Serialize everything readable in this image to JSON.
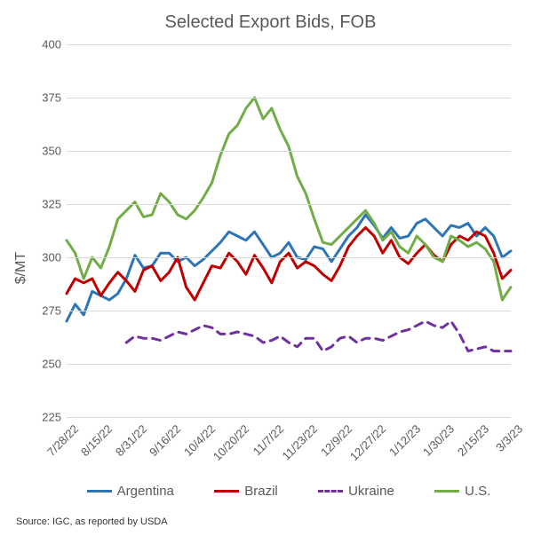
{
  "chart": {
    "type": "line",
    "title": "Selected Export Bids, FOB",
    "title_fontsize": 20,
    "title_color": "#595959",
    "ylabel": "$/MT",
    "ylabel_fontsize": 16,
    "background_color": "#ffffff",
    "grid_color": "#d9d9d9",
    "axis_line_color": "#d9d9d9",
    "tick_font_color": "#595959",
    "tick_fontsize": 13,
    "ylim": [
      225,
      400
    ],
    "yticks": [
      225,
      250,
      275,
      300,
      325,
      350,
      375,
      400
    ],
    "xcategories": [
      "7/28/22",
      "8/15/22",
      "8/31/22",
      "9/16/22",
      "10/4/22",
      "10/20/22",
      "11/7/22",
      "11/23/22",
      "12/9/22",
      "12/27/22",
      "1/12/23",
      "1/30/23",
      "2/15/23",
      "3/3/23"
    ],
    "xcategory_label_rotation_deg": -45,
    "n_points": 53,
    "line_width": 3,
    "series": [
      {
        "name": "Argentina",
        "color": "#2e75b6",
        "style": "solid",
        "values": [
          270,
          278,
          273,
          284,
          282,
          280,
          283,
          290,
          301,
          295,
          296,
          302,
          302,
          298,
          300,
          296,
          299,
          303,
          307,
          312,
          310,
          308,
          312,
          306,
          300,
          302,
          307,
          300,
          299,
          305,
          304,
          298,
          304,
          310,
          314,
          320,
          315,
          309,
          314,
          309,
          310,
          316,
          318,
          314,
          310,
          315,
          314,
          316,
          310,
          314,
          310,
          300,
          303
        ]
      },
      {
        "name": "Brazil",
        "color": "#c00000",
        "style": "solid",
        "values": [
          283,
          290,
          288,
          290,
          282,
          288,
          293,
          289,
          284,
          294,
          296,
          289,
          293,
          300,
          286,
          280,
          288,
          296,
          295,
          302,
          298,
          292,
          301,
          295,
          288,
          298,
          302,
          295,
          298,
          296,
          292,
          289,
          296,
          305,
          310,
          314,
          310,
          302,
          308,
          300,
          297,
          302,
          306,
          301,
          298,
          306,
          310,
          308,
          312,
          310,
          302,
          290,
          294
        ]
      },
      {
        "name": "Ukraine",
        "color": "#7030a0",
        "style": "dashed",
        "values": [
          null,
          null,
          null,
          null,
          null,
          null,
          null,
          260,
          263,
          262,
          262,
          261,
          263,
          265,
          264,
          266,
          268,
          267,
          264,
          264,
          265,
          264,
          263,
          260,
          261,
          263,
          260,
          258,
          262,
          262,
          256,
          258,
          262,
          263,
          260,
          262,
          262,
          261,
          263,
          265,
          266,
          268,
          270,
          268,
          267,
          270,
          264,
          256,
          257,
          258,
          256,
          256,
          256
        ]
      },
      {
        "name": "U.S.",
        "color": "#70ad47",
        "style": "solid",
        "values": [
          308,
          302,
          290,
          300,
          295,
          305,
          318,
          322,
          326,
          319,
          320,
          330,
          326,
          320,
          318,
          322,
          328,
          335,
          348,
          358,
          362,
          370,
          375,
          365,
          370,
          360,
          352,
          338,
          330,
          318,
          307,
          306,
          310,
          314,
          318,
          322,
          316,
          308,
          312,
          305,
          302,
          310,
          306,
          300,
          298,
          310,
          308,
          305,
          307,
          304,
          298,
          280,
          286
        ]
      }
    ],
    "legend": {
      "position": "bottom",
      "items": [
        "Argentina",
        "Brazil",
        "Ukraine",
        "U.S."
      ],
      "fontsize": 15,
      "color": "#595959"
    }
  },
  "source_note": "Source: IGC, as reported by USDA"
}
